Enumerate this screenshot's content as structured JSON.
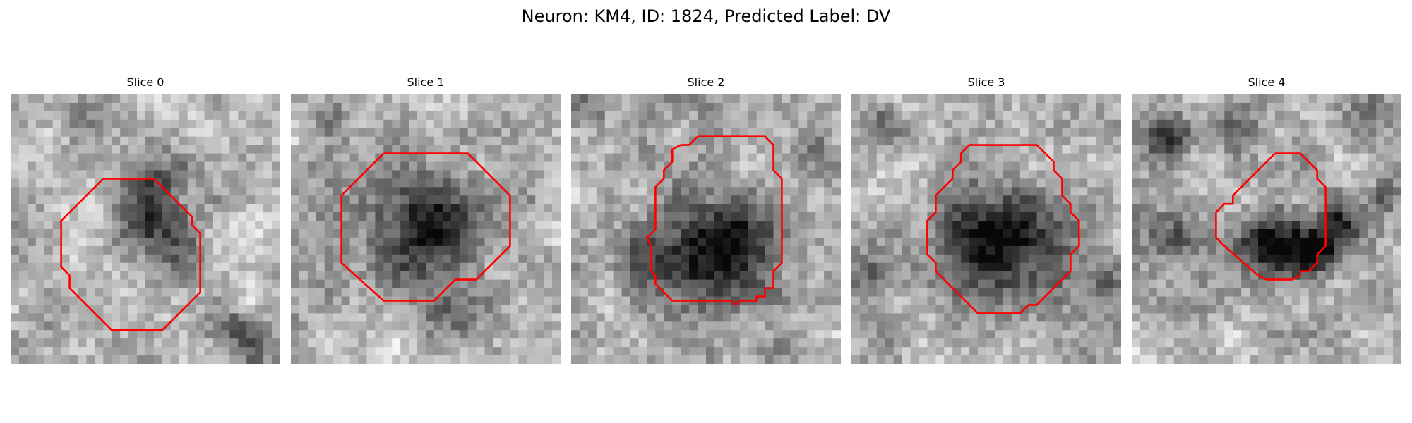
{
  "figure": {
    "title": "Neuron: KM4, ID: 1824, Predicted Label: DV"
  },
  "panels": [
    {
      "title": "Slice 0"
    },
    {
      "title": "Slice 1"
    },
    {
      "title": "Slice 2"
    },
    {
      "title": "Slice 3"
    },
    {
      "title": "Slice 4"
    }
  ],
  "colors": {
    "contour": "#ff0000",
    "background": "#ffffff"
  }
}
